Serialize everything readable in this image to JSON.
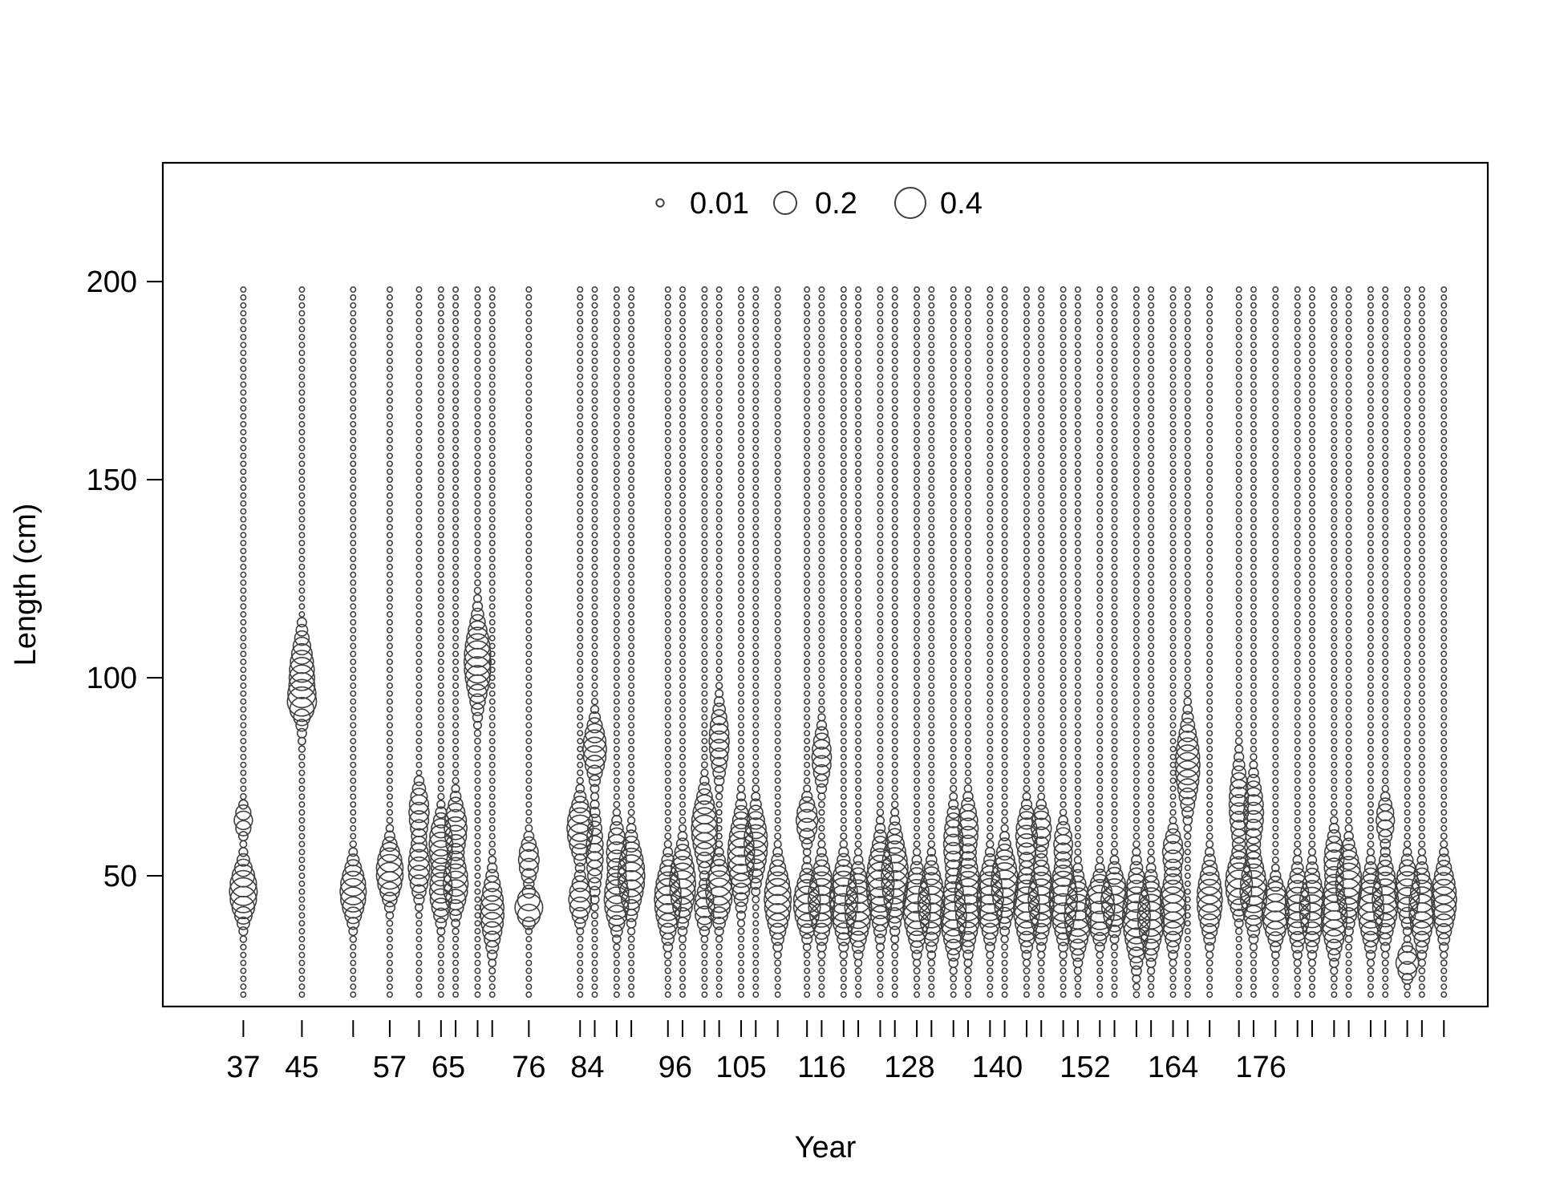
{
  "chart_data": {
    "type": "scatter",
    "subtype": "bubble",
    "xlabel": "Year",
    "ylabel": "Length (cm)",
    "ylim": [
      17,
      230
    ],
    "y_ticks": [
      50,
      100,
      150,
      200
    ],
    "x_tick_labels": [
      37,
      45,
      57,
      65,
      76,
      84,
      96,
      105,
      116,
      128,
      140,
      152,
      164,
      176
    ],
    "bins": {
      "from": 20,
      "to": 198,
      "step": 2
    },
    "colors": {
      "stroke": "#404040",
      "frame": "#000000"
    },
    "legend": {
      "placement": "top-center",
      "entries": [
        {
          "label": "0.01",
          "value": 0.01
        },
        {
          "label": "0.2",
          "value": 0.2
        },
        {
          "label": "0.4",
          "value": 0.4
        }
      ]
    },
    "series": [
      {
        "x": 37,
        "peaks": [
          [
            46,
            0.32,
            4
          ],
          [
            64,
            0.12,
            2
          ]
        ],
        "max_len": 76
      },
      {
        "x": 45,
        "peaks": [
          [
            100,
            0.26,
            6
          ],
          [
            94,
            0.2,
            2
          ]
        ],
        "max_len": 114
      },
      {
        "x": 52,
        "peaks": [
          [
            46,
            0.28,
            4
          ]
        ],
        "max_len": 58
      },
      {
        "x": 57,
        "peaks": [
          [
            51,
            0.3,
            4
          ]
        ],
        "max_len": 68
      },
      {
        "x": 61,
        "peaks": [
          [
            52,
            0.18,
            4
          ],
          [
            66,
            0.15,
            4
          ]
        ],
        "max_len": 74
      },
      {
        "x": 64,
        "peaks": [
          [
            46,
            0.2,
            4
          ],
          [
            58,
            0.22,
            4
          ]
        ],
        "max_len": 78
      },
      {
        "x": 66,
        "peaks": [
          [
            48,
            0.25,
            4
          ],
          [
            62,
            0.2,
            4
          ]
        ],
        "max_len": 86
      },
      {
        "x": 69,
        "peaks": [
          [
            104,
            0.3,
            6
          ]
        ],
        "max_len": 126
      },
      {
        "x": 71,
        "peaks": [
          [
            41,
            0.22,
            5
          ]
        ],
        "max_len": 114
      },
      {
        "x": 76,
        "peaks": [
          [
            42,
            0.32,
            2
          ],
          [
            54,
            0.16,
            3
          ]
        ],
        "max_len": 112
      },
      {
        "x": 83,
        "peaks": [
          [
            44,
            0.2,
            3
          ],
          [
            62,
            0.28,
            4
          ]
        ],
        "max_len": 108
      },
      {
        "x": 85,
        "peaks": [
          [
            82,
            0.22,
            4
          ],
          [
            56,
            0.1,
            6
          ]
        ],
        "max_len": 112
      },
      {
        "x": 88,
        "peaks": [
          [
            44,
            0.25,
            4
          ],
          [
            56,
            0.15,
            4
          ]
        ],
        "max_len": 108
      },
      {
        "x": 90,
        "peaks": [
          [
            50,
            0.3,
            5
          ]
        ],
        "max_len": 74
      },
      {
        "x": 95,
        "peaks": [
          [
            44,
            0.3,
            5
          ]
        ],
        "max_len": 82
      },
      {
        "x": 97,
        "peaks": [
          [
            48,
            0.28,
            5
          ]
        ],
        "max_len": 128
      },
      {
        "x": 100,
        "peaks": [
          [
            62,
            0.28,
            5
          ],
          [
            42,
            0.15,
            3
          ]
        ],
        "max_len": 132
      },
      {
        "x": 102,
        "peaks": [
          [
            46,
            0.3,
            4
          ],
          [
            84,
            0.15,
            5
          ]
        ],
        "max_len": 120
      },
      {
        "x": 105,
        "peaks": [
          [
            55,
            0.3,
            6
          ]
        ],
        "max_len": 124
      },
      {
        "x": 107,
        "peaks": [
          [
            58,
            0.22,
            5
          ]
        ],
        "max_len": 110
      },
      {
        "x": 110,
        "peaks": [
          [
            44,
            0.3,
            5
          ]
        ],
        "max_len": 78
      },
      {
        "x": 114,
        "peaks": [
          [
            43,
            0.3,
            4
          ],
          [
            64,
            0.18,
            3
          ]
        ],
        "max_len": 130
      },
      {
        "x": 116,
        "peaks": [
          [
            44,
            0.3,
            5
          ],
          [
            80,
            0.14,
            4
          ]
        ],
        "max_len": 94
      },
      {
        "x": 119,
        "peaks": [
          [
            44,
            0.34,
            5
          ]
        ],
        "max_len": 118
      },
      {
        "x": 121,
        "peaks": [
          [
            42,
            0.3,
            5
          ]
        ],
        "max_len": 86
      },
      {
        "x": 124,
        "peaks": [
          [
            48,
            0.32,
            6
          ]
        ],
        "max_len": 84
      },
      {
        "x": 126,
        "peaks": [
          [
            50,
            0.3,
            6
          ]
        ],
        "max_len": 92
      },
      {
        "x": 129,
        "peaks": [
          [
            42,
            0.32,
            5
          ]
        ],
        "max_len": 102
      },
      {
        "x": 131,
        "peaks": [
          [
            43,
            0.3,
            5
          ]
        ],
        "max_len": 96
      },
      {
        "x": 134,
        "peaks": [
          [
            40,
            0.28,
            5
          ],
          [
            58,
            0.14,
            5
          ]
        ],
        "max_len": 94
      },
      {
        "x": 136,
        "peaks": [
          [
            44,
            0.3,
            6
          ],
          [
            62,
            0.15,
            4
          ]
        ],
        "max_len": 102
      },
      {
        "x": 139,
        "peaks": [
          [
            44,
            0.3,
            5
          ]
        ],
        "max_len": 84
      },
      {
        "x": 141,
        "peaks": [
          [
            48,
            0.3,
            5
          ]
        ],
        "max_len": 80
      },
      {
        "x": 144,
        "peaks": [
          [
            42,
            0.28,
            5
          ],
          [
            60,
            0.18,
            4
          ]
        ],
        "max_len": 136
      },
      {
        "x": 146,
        "peaks": [
          [
            44,
            0.28,
            5
          ],
          [
            62,
            0.15,
            3
          ]
        ],
        "max_len": 110
      },
      {
        "x": 149,
        "peaks": [
          [
            44,
            0.34,
            5
          ],
          [
            58,
            0.12,
            3
          ]
        ],
        "max_len": 88
      },
      {
        "x": 151,
        "peaks": [
          [
            40,
            0.3,
            5
          ]
        ],
        "max_len": 80
      },
      {
        "x": 154,
        "peaks": [
          [
            42,
            0.38,
            4
          ]
        ],
        "max_len": 98
      },
      {
        "x": 156,
        "peaks": [
          [
            44,
            0.3,
            4
          ]
        ],
        "max_len": 74
      },
      {
        "x": 159,
        "peaks": [
          [
            40,
            0.32,
            6
          ]
        ],
        "max_len": 100
      },
      {
        "x": 161,
        "peaks": [
          [
            40,
            0.3,
            5
          ]
        ],
        "max_len": 98
      },
      {
        "x": 164,
        "peaks": [
          [
            42,
            0.28,
            5
          ],
          [
            56,
            0.16,
            3
          ]
        ],
        "max_len": 90
      },
      {
        "x": 166,
        "peaks": [
          [
            78,
            0.24,
            6
          ]
        ],
        "max_len": 102
      },
      {
        "x": 169,
        "peaks": [
          [
            44,
            0.26,
            5
          ]
        ],
        "max_len": 120
      },
      {
        "x": 173,
        "peaks": [
          [
            48,
            0.3,
            4
          ],
          [
            68,
            0.14,
            6
          ]
        ],
        "max_len": 102
      },
      {
        "x": 175,
        "peaks": [
          [
            46,
            0.3,
            5
          ],
          [
            66,
            0.15,
            5
          ]
        ],
        "max_len": 102
      },
      {
        "x": 178,
        "peaks": [
          [
            41,
            0.32,
            4
          ]
        ],
        "max_len": 78
      },
      {
        "x": 181,
        "peaks": [
          [
            42,
            0.26,
            5
          ]
        ],
        "max_len": 72
      },
      {
        "x": 183,
        "peaks": [
          [
            42,
            0.26,
            5
          ]
        ],
        "max_len": 80
      },
      {
        "x": 186,
        "peaks": [
          [
            40,
            0.28,
            5
          ],
          [
            54,
            0.14,
            4
          ]
        ],
        "max_len": 70
      },
      {
        "x": 188,
        "peaks": [
          [
            48,
            0.28,
            5
          ]
        ],
        "max_len": 100
      },
      {
        "x": 191,
        "peaks": [
          [
            42,
            0.28,
            5
          ]
        ],
        "max_len": 100
      },
      {
        "x": 193,
        "peaks": [
          [
            44,
            0.28,
            5
          ],
          [
            64,
            0.12,
            3
          ]
        ],
        "max_len": 120
      },
      {
        "x": 196,
        "peaks": [
          [
            28,
            0.2,
            2
          ],
          [
            46,
            0.26,
            4
          ]
        ],
        "max_len": 120
      },
      {
        "x": 198,
        "peaks": [
          [
            42,
            0.28,
            5
          ]
        ],
        "max_len": 102
      },
      {
        "x": 201,
        "peaks": [
          [
            44,
            0.26,
            5
          ]
        ],
        "max_len": 84
      }
    ]
  }
}
